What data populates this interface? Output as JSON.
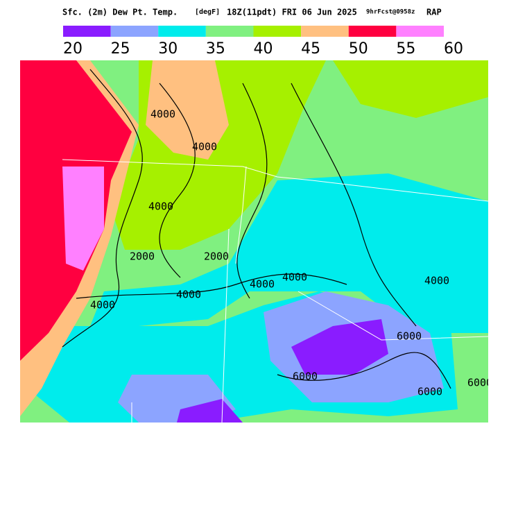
{
  "header": {
    "title": "Sfc. (2m) Dew Pt. Temp.",
    "units": "[degF]",
    "valid": "18Z(11pdt) FRI 06 Jun 2025",
    "forecast": "9hrFcst@0958z",
    "model": "RAP"
  },
  "legend": {
    "colors": [
      "#8a1cff",
      "#8ca4ff",
      "#00ecec",
      "#80f080",
      "#a6f000",
      "#ffc080",
      "#ff0040",
      "#ff80ff"
    ],
    "labels": [
      20,
      25,
      30,
      35,
      40,
      45,
      50,
      55,
      60
    ]
  },
  "map": {
    "contour_labels": [
      "4000",
      "4000",
      "4000",
      "2000",
      "2000",
      "4000",
      "4000",
      "4000",
      "4000",
      "6000",
      "6000",
      "4000",
      "6000",
      "6000"
    ]
  }
}
